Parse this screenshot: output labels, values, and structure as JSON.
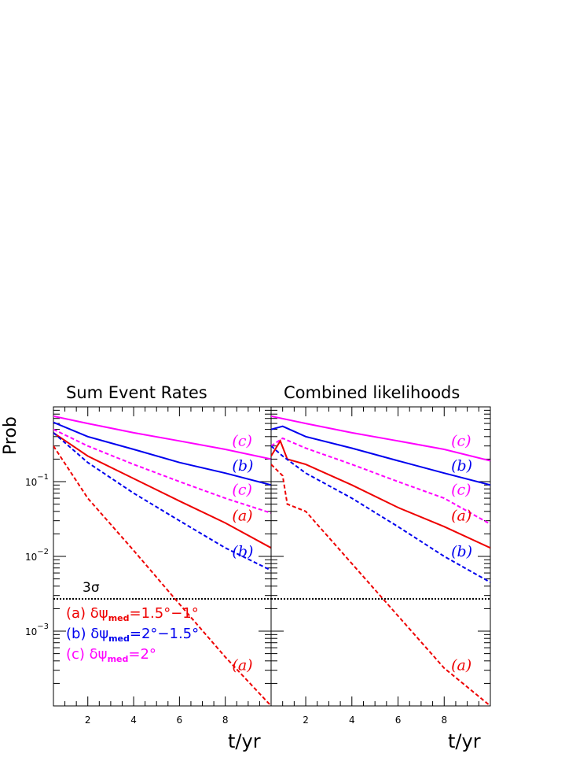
{
  "chart_data": [
    {
      "type": "line",
      "title": "Sum Event Rates",
      "ylabel": "Prob",
      "xlabel": "t/yr",
      "yscale": "log",
      "xlim": [
        0.5,
        10
      ],
      "ylim": [
        0.0001,
        1.0
      ],
      "x_ticks": [
        "2",
        "4",
        "6",
        "8"
      ],
      "y_ticks": [
        "10^-1",
        "10^-2",
        "10^-3"
      ],
      "threshold": {
        "label": "3σ",
        "value": 0.0027
      },
      "series": [
        {
          "name": "(c)",
          "style": "solid",
          "color": "#ff00ff",
          "x": [
            0.5,
            2,
            4,
            6,
            8,
            10
          ],
          "y": [
            0.75,
            0.6,
            0.45,
            0.35,
            0.27,
            0.2
          ]
        },
        {
          "name": "(b)",
          "style": "solid",
          "color": "#0000ee",
          "x": [
            0.5,
            2,
            4,
            6,
            8,
            10
          ],
          "y": [
            0.62,
            0.4,
            0.27,
            0.18,
            0.13,
            0.09
          ]
        },
        {
          "name": "(c)",
          "style": "dashed",
          "color": "#ff00ff",
          "x": [
            0.5,
            2,
            4,
            6,
            8,
            10
          ],
          "y": [
            0.5,
            0.3,
            0.17,
            0.1,
            0.06,
            0.038
          ]
        },
        {
          "name": "(a)",
          "style": "solid",
          "color": "#ee0000",
          "x": [
            0.5,
            2,
            4,
            6,
            8,
            10
          ],
          "y": [
            0.45,
            0.22,
            0.11,
            0.055,
            0.028,
            0.013
          ]
        },
        {
          "name": "(b)",
          "style": "dashed",
          "color": "#0000ee",
          "x": [
            0.5,
            2,
            4,
            6,
            8,
            10
          ],
          "y": [
            0.45,
            0.18,
            0.07,
            0.03,
            0.013,
            0.0065
          ]
        },
        {
          "name": "(a)",
          "style": "dashed",
          "color": "#ee0000",
          "x": [
            0.5,
            2,
            4,
            6,
            8,
            10
          ],
          "y": [
            0.3,
            0.06,
            0.012,
            0.0023,
            0.00045,
            0.0001
          ]
        }
      ],
      "curve_labels": [
        {
          "text": "(c)",
          "color": "#ff00ff",
          "x": 8.3,
          "y": 0.3
        },
        {
          "text": "(b)",
          "color": "#0000ee",
          "x": 8.3,
          "y": 0.14
        },
        {
          "text": "(c)",
          "color": "#ff00ff",
          "x": 8.3,
          "y": 0.067
        },
        {
          "text": "(a)",
          "color": "#ee0000",
          "x": 8.3,
          "y": 0.03
        },
        {
          "text": "(b)",
          "color": "#0000ee",
          "x": 8.3,
          "y": 0.01
        },
        {
          "text": "(a)",
          "color": "#ee0000",
          "x": 8.3,
          "y": 0.0003
        }
      ]
    },
    {
      "type": "line",
      "title": "Combined likelihoods",
      "xlabel": "t/yr",
      "yscale": "log",
      "xlim": [
        0.5,
        10
      ],
      "ylim": [
        0.0001,
        1.0
      ],
      "x_ticks": [
        "2",
        "4",
        "6",
        "8"
      ],
      "threshold": {
        "label": "",
        "value": 0.0027
      },
      "series": [
        {
          "name": "(c)",
          "style": "solid",
          "color": "#ff00ff",
          "x": [
            0.5,
            2,
            4,
            6,
            8,
            10
          ],
          "y": [
            0.75,
            0.6,
            0.45,
            0.35,
            0.27,
            0.19
          ]
        },
        {
          "name": "(b)",
          "style": "solid",
          "color": "#0000ee",
          "x": [
            0.5,
            1,
            2,
            4,
            6,
            8,
            10
          ],
          "y": [
            0.5,
            0.55,
            0.4,
            0.28,
            0.19,
            0.13,
            0.09
          ]
        },
        {
          "name": "(c)",
          "style": "dashed",
          "color": "#ff00ff",
          "x": [
            0.5,
            1,
            2,
            4,
            6,
            8,
            10
          ],
          "y": [
            0.3,
            0.38,
            0.28,
            0.17,
            0.1,
            0.06,
            0.027
          ]
        },
        {
          "name": "(a)",
          "style": "solid",
          "color": "#ee0000",
          "x": [
            0.5,
            0.9,
            1.2,
            2,
            4,
            6,
            8,
            10
          ],
          "y": [
            0.22,
            0.35,
            0.2,
            0.17,
            0.09,
            0.045,
            0.025,
            0.013
          ]
        },
        {
          "name": "(b)",
          "style": "dashed",
          "color": "#0000ee",
          "x": [
            0.5,
            1,
            2,
            4,
            6,
            8,
            10
          ],
          "y": [
            0.3,
            0.22,
            0.13,
            0.06,
            0.025,
            0.01,
            0.0045
          ]
        },
        {
          "name": "(a)",
          "style": "dashed",
          "color": "#ee0000",
          "x": [
            0.5,
            1,
            1.2,
            2,
            4,
            6,
            8,
            10
          ],
          "y": [
            0.17,
            0.12,
            0.05,
            0.04,
            0.008,
            0.0016,
            0.00032,
            0.0001
          ]
        }
      ],
      "curve_labels": [
        {
          "text": "(c)",
          "color": "#ff00ff",
          "x": 8.3,
          "y": 0.3
        },
        {
          "text": "(b)",
          "color": "#0000ee",
          "x": 8.3,
          "y": 0.14
        },
        {
          "text": "(c)",
          "color": "#ff00ff",
          "x": 8.3,
          "y": 0.067
        },
        {
          "text": "(a)",
          "color": "#ee0000",
          "x": 8.3,
          "y": 0.03
        },
        {
          "text": "(b)",
          "color": "#0000ee",
          "x": 8.3,
          "y": 0.01
        },
        {
          "text": "(a)",
          "color": "#ee0000",
          "x": 8.3,
          "y": 0.0003
        }
      ]
    }
  ],
  "legend": [
    {
      "tag": "(a)",
      "text": "δψ",
      "sub": "med",
      "rest": "=1.5°−1°",
      "color": "#ee0000"
    },
    {
      "tag": "(b)",
      "text": "δψ",
      "sub": "med",
      "rest": "=2°−1.5°",
      "color": "#0000ee"
    },
    {
      "tag": "(c)",
      "text": "δψ",
      "sub": "med",
      "rest": "=2°",
      "color": "#ff00ff"
    }
  ]
}
